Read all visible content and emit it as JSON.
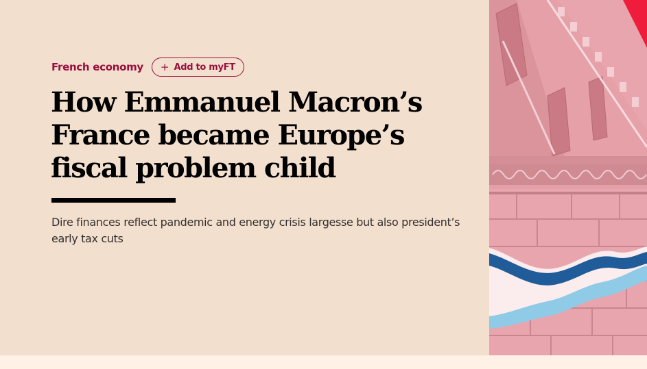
{
  "article": {
    "topic": "French economy",
    "myft_button_label": "Add to myFT",
    "headline": "How Emmanuel Macron’s France became Europe’s fiscal problem child",
    "standfirst": "Dire finances reflect pandemic and energy crisis largesse but also president’s early tax cuts"
  },
  "colors": {
    "background": "#f2dfce",
    "accent": "#990f3d",
    "text": "#33302e",
    "image_tint": "#e8a3aa"
  },
  "icons": {
    "myft_button": "plus-icon",
    "hero_image": "building-facade-illustration"
  }
}
